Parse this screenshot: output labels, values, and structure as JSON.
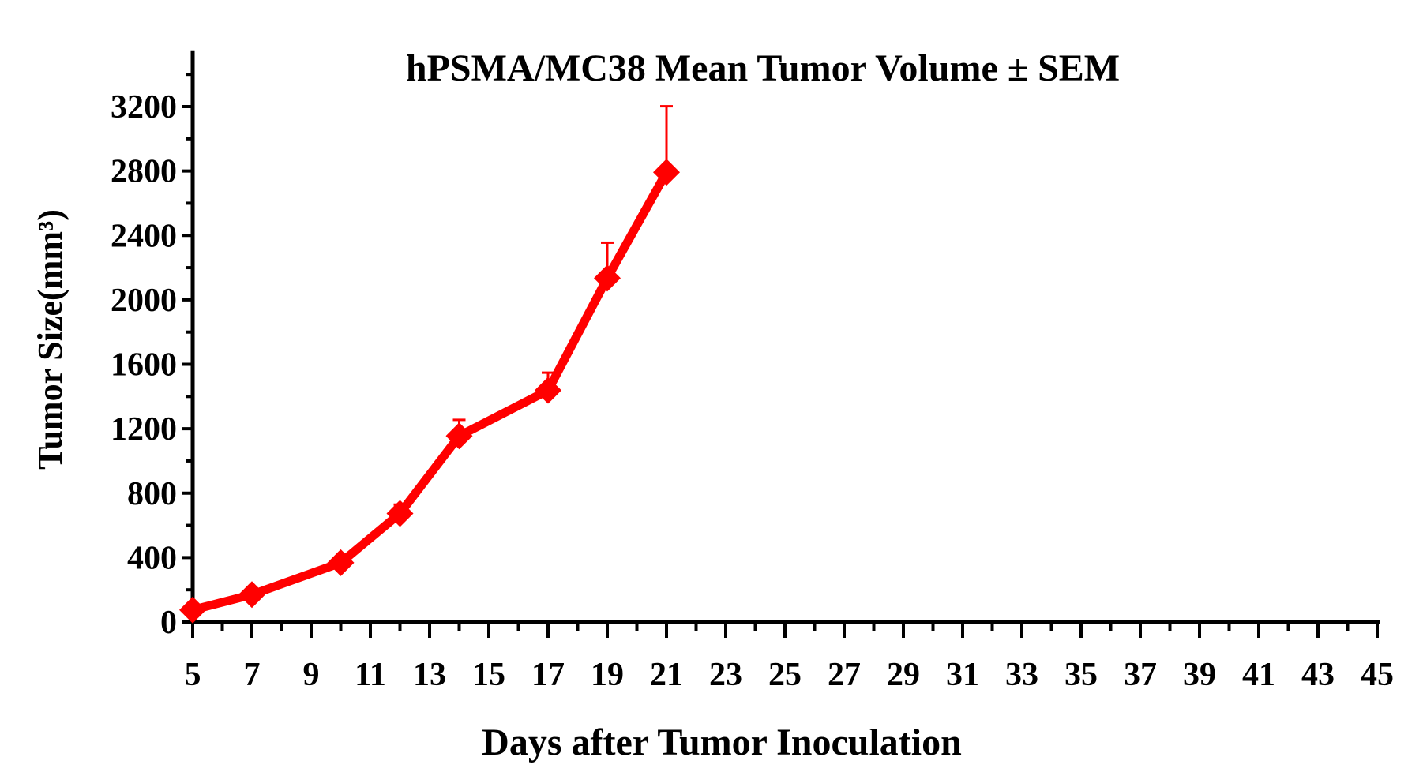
{
  "chart_data": {
    "type": "line",
    "title": "hPSMA/MC38 Mean Tumor Volume ± SEM",
    "xlabel": "Days after Tumor Inoculation",
    "ylabel": "Tumor Size(mm³)",
    "xlim": [
      5,
      45
    ],
    "ylim": [
      0,
      3500
    ],
    "x_ticks": [
      5,
      7,
      9,
      11,
      13,
      15,
      17,
      19,
      21,
      23,
      25,
      27,
      29,
      31,
      33,
      35,
      37,
      39,
      41,
      43,
      45
    ],
    "y_ticks": [
      0,
      400,
      800,
      1200,
      1600,
      2000,
      2400,
      2800,
      3200
    ],
    "grid": false,
    "legend": "none",
    "series": [
      {
        "color": "#ff0000",
        "marker": "diamond",
        "x": [
          5,
          7,
          10,
          12,
          14,
          17,
          19,
          21
        ],
        "y": [
          75,
          170,
          368,
          674,
          1155,
          1438,
          2135,
          2792
        ],
        "sem": [
          10,
          15,
          20,
          55,
          100,
          110,
          220,
          410
        ]
      }
    ]
  }
}
